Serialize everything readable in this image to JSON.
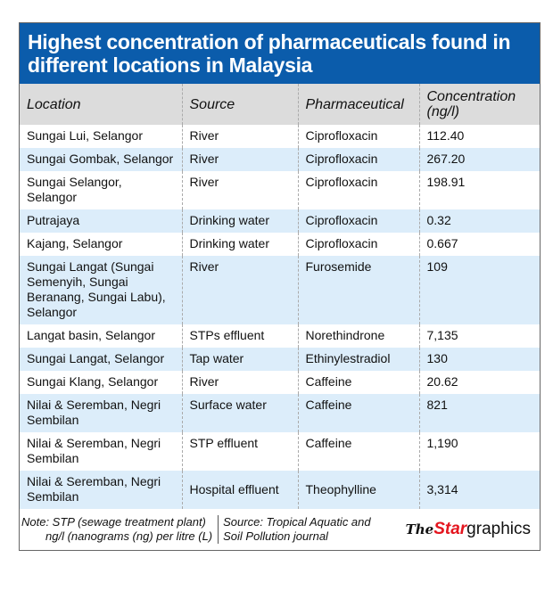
{
  "title": "Highest concentration of pharmaceuticals found in different locations in Malaysia",
  "headers": [
    "Location",
    "Source",
    "Pharmaceutical",
    "Concentration (ng/l)"
  ],
  "rows": [
    [
      "Sungai Lui, Selangor",
      "River",
      "Ciprofloxacin",
      "112.40"
    ],
    [
      "Sungai Gombak, Selangor",
      "River",
      "Ciprofloxacin",
      "267.20"
    ],
    [
      "Sungai Selangor, Selangor",
      "River",
      "Ciprofloxacin",
      "198.91"
    ],
    [
      "Putrajaya",
      "Drinking water",
      "Ciprofloxacin",
      "0.32"
    ],
    [
      "Kajang, Selangor",
      "Drinking water",
      "Ciprofloxacin",
      "0.667"
    ],
    [
      "Sungai Langat (Sungai Semenyih, Sungai Beranang, Sungai Labu), Selangor",
      "River",
      "Furosemide",
      "109"
    ],
    [
      "Langat basin, Selangor",
      "STPs effluent",
      "Norethindrone",
      "7,135"
    ],
    [
      "Sungai Langat, Selangor",
      "Tap water",
      "Ethinylestradiol",
      "130"
    ],
    [
      "Sungai Klang, Selangor",
      "River",
      "Caffeine",
      "20.62"
    ],
    [
      "Nilai & Seremban, Negri Sembilan",
      "Surface water",
      "Caffeine",
      "821"
    ],
    [
      "Nilai & Seremban, Negri Sembilan",
      "STP effluent",
      "Caffeine",
      "1,190"
    ],
    [
      "Nilai & Seremban, Negri Sembilan",
      "Hospital effluent",
      "Theophylline",
      "3,314"
    ]
  ],
  "footer": {
    "note_line1": "Note: STP  (sewage treatment plant)",
    "note_line2": "ng/l  (nanograms (ng) per litre (L)",
    "source_line1": "Source: Tropical Aquatic and",
    "source_line2": "Soil Pollution journal",
    "logo_the": "The",
    "logo_star": "Star",
    "logo_graphics": "graphics"
  }
}
